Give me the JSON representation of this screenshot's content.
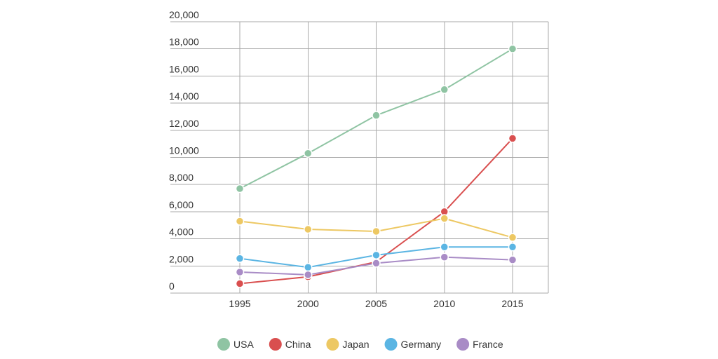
{
  "chart_data": {
    "type": "line",
    "title": "",
    "xlabel": "",
    "ylabel": "",
    "x": [
      "1995",
      "2000",
      "2005",
      "2010",
      "2015"
    ],
    "ylim": [
      0,
      20000
    ],
    "y_ticks": [
      "0",
      "2,000",
      "4,000",
      "6,000",
      "8,000",
      "10,000",
      "12,000",
      "14,000",
      "16,000",
      "18,000",
      "20,000"
    ],
    "grid": true,
    "legend_position": "bottom-center",
    "series": [
      {
        "name": "USA",
        "color": "#8fc4a3",
        "values": [
          7700,
          10300,
          13100,
          15000,
          18000
        ]
      },
      {
        "name": "China",
        "color": "#d94f4f",
        "values": [
          700,
          1200,
          2300,
          6000,
          11400
        ]
      },
      {
        "name": "Japan",
        "color": "#edc863",
        "values": [
          5300,
          4700,
          4550,
          5500,
          4100
        ]
      },
      {
        "name": "Germany",
        "color": "#5bb5e3",
        "values": [
          2550,
          1900,
          2800,
          3400,
          3400
        ]
      },
      {
        "name": "France",
        "color": "#a98cc6",
        "values": [
          1550,
          1350,
          2200,
          2650,
          2450
        ]
      }
    ]
  }
}
